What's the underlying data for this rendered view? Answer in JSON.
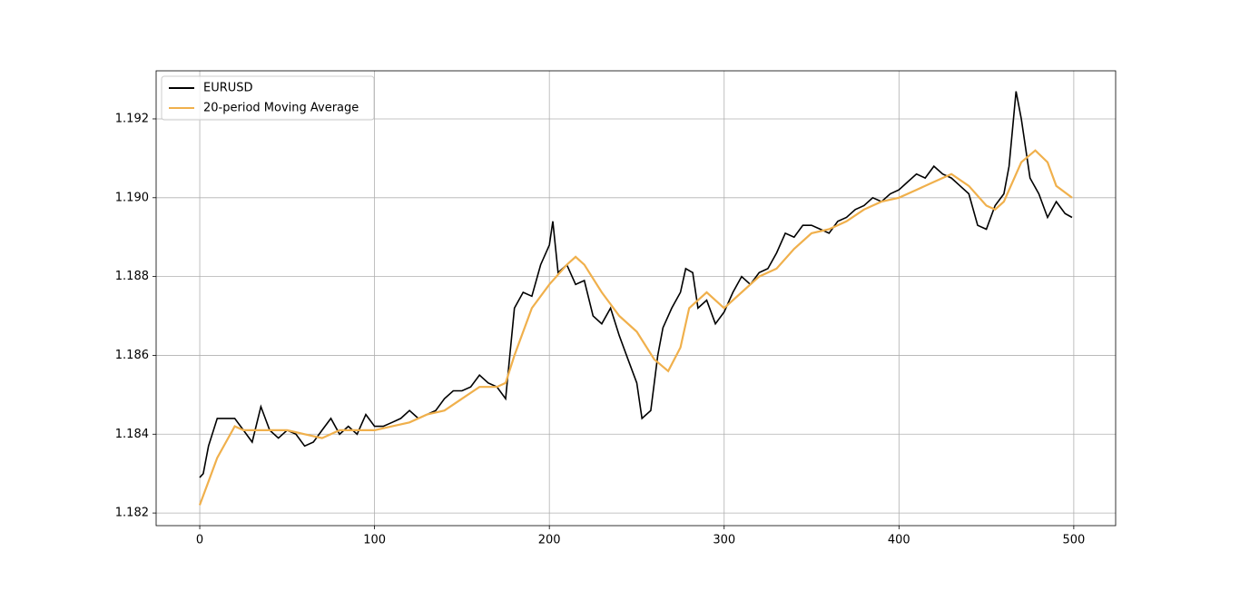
{
  "chart_data": {
    "type": "line",
    "xlim": [
      -24.95,
      523.95
    ],
    "ylim": [
      1.18168,
      1.19322
    ],
    "xticks": [
      0,
      100,
      200,
      300,
      400,
      500
    ],
    "yticks": [
      1.182,
      1.184,
      1.186,
      1.188,
      {
        "value": 1.19,
        "label": "1.190"
      },
      1.192
    ],
    "grid": true,
    "legend": "upper left",
    "series": [
      {
        "name": "EURUSD",
        "color": "#000000",
        "x": [
          0,
          2,
          5,
          10,
          15,
          20,
          25,
          30,
          35,
          40,
          45,
          50,
          55,
          60,
          65,
          70,
          75,
          80,
          85,
          90,
          95,
          100,
          105,
          110,
          115,
          120,
          125,
          130,
          135,
          140,
          145,
          150,
          155,
          160,
          165,
          170,
          175,
          180,
          185,
          190,
          195,
          200,
          202,
          205,
          210,
          215,
          220,
          225,
          230,
          235,
          240,
          245,
          250,
          253,
          258,
          262,
          265,
          270,
          275,
          278,
          282,
          285,
          290,
          295,
          300,
          305,
          310,
          315,
          320,
          325,
          330,
          335,
          340,
          345,
          350,
          355,
          360,
          365,
          370,
          375,
          380,
          385,
          390,
          395,
          400,
          405,
          410,
          415,
          420,
          425,
          430,
          435,
          440,
          445,
          450,
          455,
          460,
          463,
          467,
          470,
          475,
          480,
          485,
          490,
          495,
          499
        ],
        "values": [
          1.1829,
          1.183,
          1.1837,
          1.1844,
          1.1844,
          1.1844,
          1.1841,
          1.1838,
          1.1847,
          1.1841,
          1.1839,
          1.1841,
          1.184,
          1.1837,
          1.1838,
          1.1841,
          1.1844,
          1.184,
          1.1842,
          1.184,
          1.1845,
          1.1842,
          1.1842,
          1.1843,
          1.1844,
          1.1846,
          1.1844,
          1.1845,
          1.1846,
          1.1849,
          1.1851,
          1.1851,
          1.1852,
          1.1855,
          1.1853,
          1.1852,
          1.1849,
          1.1872,
          1.1876,
          1.1875,
          1.1883,
          1.1888,
          1.1894,
          1.1881,
          1.1883,
          1.1878,
          1.1879,
          1.187,
          1.1868,
          1.1872,
          1.1865,
          1.1859,
          1.1853,
          1.1844,
          1.1846,
          1.186,
          1.1867,
          1.1872,
          1.1876,
          1.1882,
          1.1881,
          1.1872,
          1.1874,
          1.1868,
          1.1871,
          1.1876,
          1.188,
          1.1878,
          1.1881,
          1.1882,
          1.1886,
          1.1891,
          1.189,
          1.1893,
          1.1893,
          1.1892,
          1.1891,
          1.1894,
          1.1895,
          1.1897,
          1.1898,
          1.19,
          1.1899,
          1.1901,
          1.1902,
          1.1904,
          1.1906,
          1.1905,
          1.1908,
          1.1906,
          1.1905,
          1.1903,
          1.1901,
          1.1893,
          1.1892,
          1.1898,
          1.1901,
          1.1908,
          1.1927,
          1.192,
          1.1905,
          1.1901,
          1.1895,
          1.1899,
          1.1896,
          1.1895
        ]
      },
      {
        "name": "20-period Moving Average",
        "color": "#f0b04c",
        "x": [
          0,
          5,
          10,
          15,
          20,
          25,
          30,
          40,
          50,
          60,
          70,
          80,
          90,
          100,
          110,
          120,
          130,
          140,
          150,
          160,
          170,
          175,
          180,
          190,
          200,
          210,
          215,
          220,
          230,
          240,
          250,
          260,
          268,
          275,
          280,
          290,
          300,
          310,
          320,
          330,
          340,
          350,
          360,
          370,
          380,
          390,
          400,
          410,
          420,
          430,
          440,
          450,
          455,
          460,
          470,
          478,
          485,
          490,
          499
        ],
        "values": [
          1.1822,
          1.1828,
          1.1834,
          1.1838,
          1.1842,
          1.1841,
          1.1841,
          1.1841,
          1.1841,
          1.184,
          1.1839,
          1.1841,
          1.1841,
          1.1841,
          1.1842,
          1.1843,
          1.1845,
          1.1846,
          1.1849,
          1.1852,
          1.1852,
          1.1853,
          1.186,
          1.1872,
          1.1878,
          1.1883,
          1.1885,
          1.1883,
          1.1876,
          1.187,
          1.1866,
          1.1859,
          1.1856,
          1.1862,
          1.1872,
          1.1876,
          1.1872,
          1.1876,
          1.188,
          1.1882,
          1.1887,
          1.1891,
          1.1892,
          1.1894,
          1.1897,
          1.1899,
          1.19,
          1.1902,
          1.1904,
          1.1906,
          1.1903,
          1.1898,
          1.1897,
          1.1899,
          1.1909,
          1.1912,
          1.1909,
          1.1903,
          1.19
        ]
      }
    ]
  }
}
